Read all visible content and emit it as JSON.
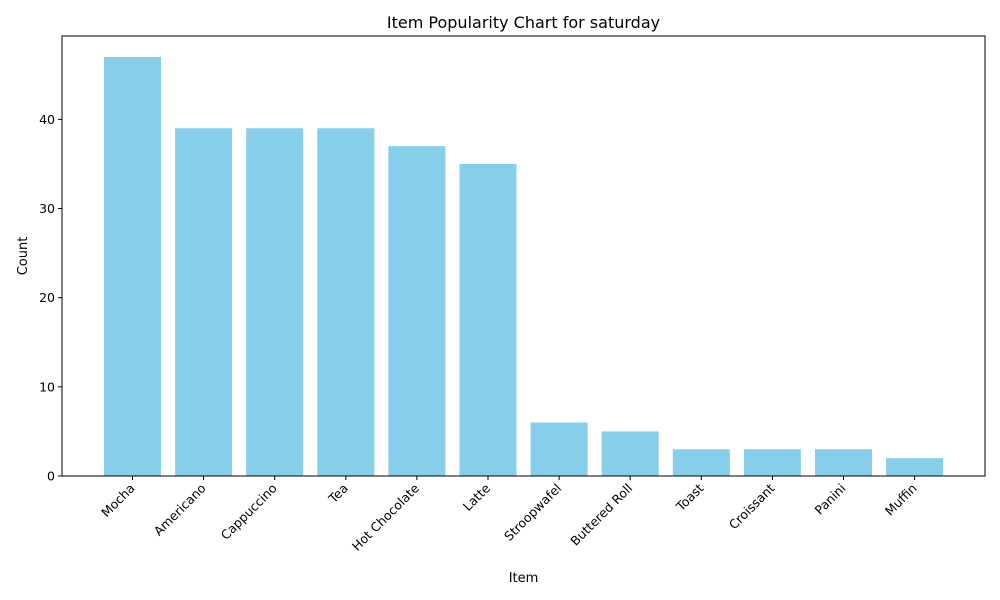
{
  "chart_data": {
    "type": "bar",
    "title": "Item Popularity Chart for saturday",
    "xlabel": "Item",
    "ylabel": "Count",
    "categories": [
      "Mocha",
      "Americano",
      "Cappuccino",
      "Tea",
      "Hot Chocolate",
      "Latte",
      "Stroopwafel",
      "Buttered Roll",
      "Toast",
      "Croissant",
      "Panini",
      "Muffin"
    ],
    "values": [
      47,
      39,
      39,
      39,
      37,
      35,
      6,
      5,
      3,
      3,
      3,
      2
    ],
    "ylim": [
      0,
      49.35
    ],
    "yticks": [
      0,
      10,
      20,
      30,
      40
    ],
    "bar_color": "#87ceeb",
    "grid": false,
    "legend": "none"
  }
}
